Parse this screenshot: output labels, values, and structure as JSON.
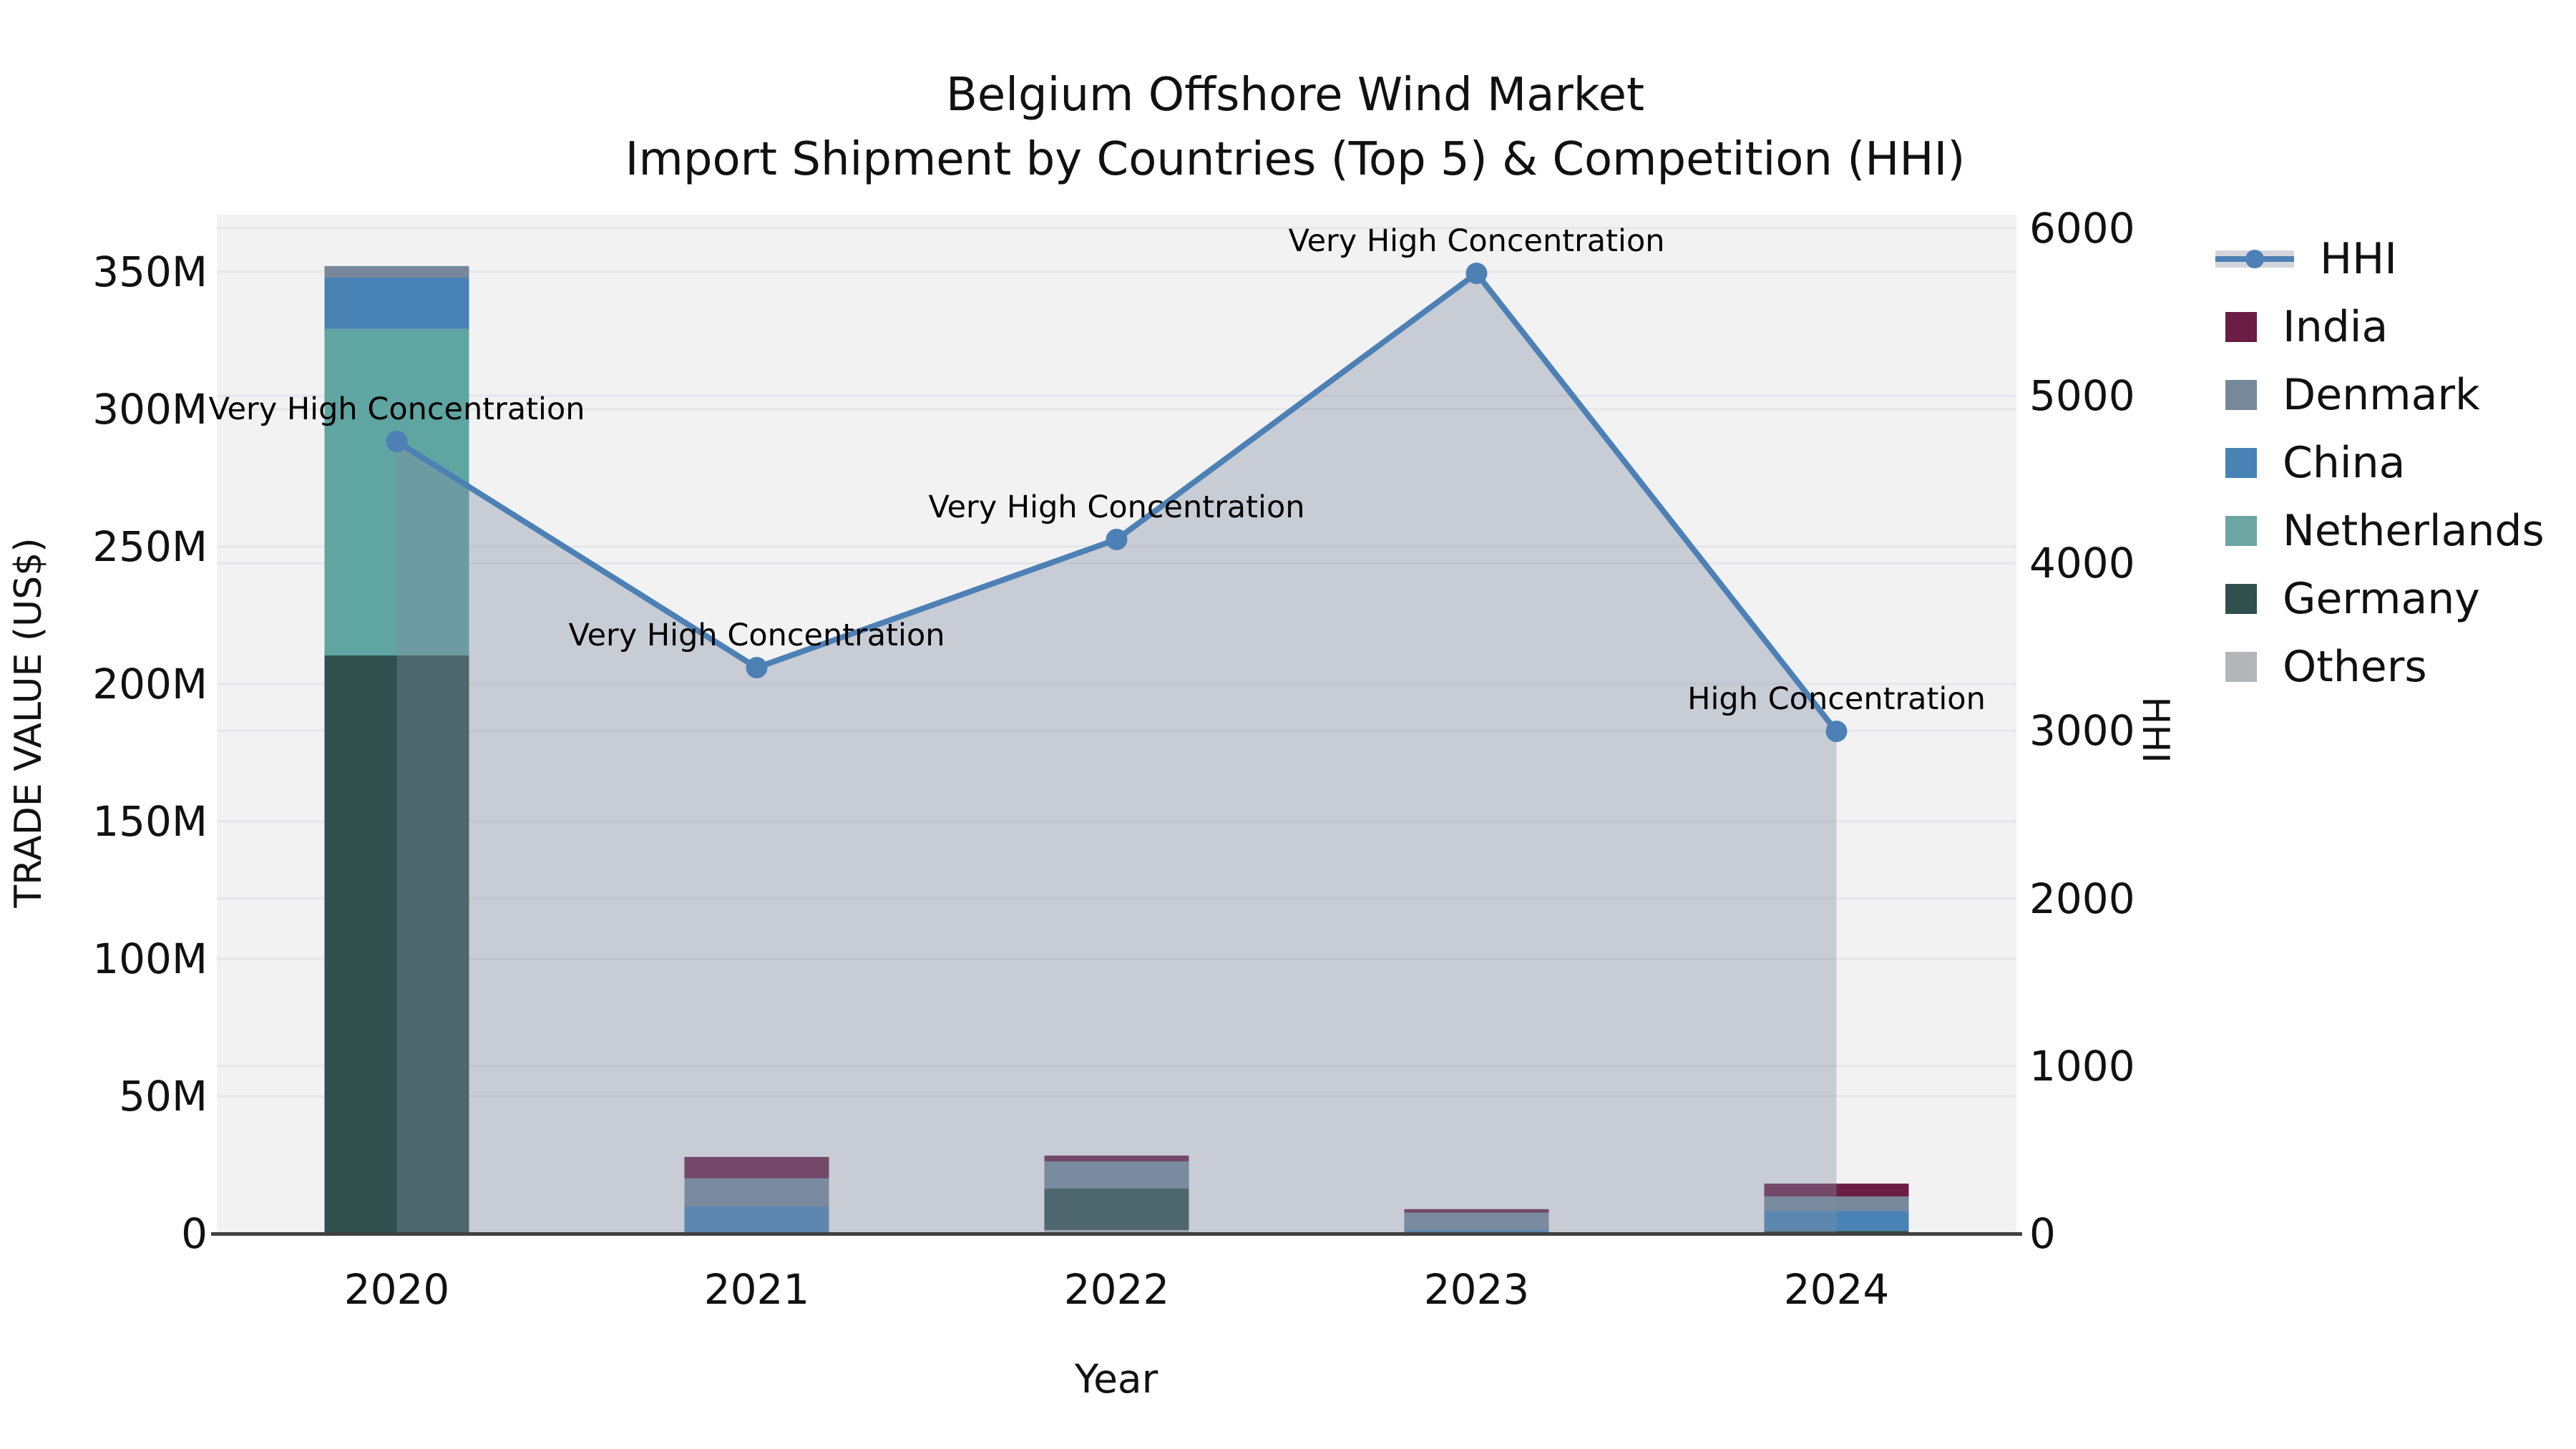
{
  "title": {
    "line1": "Belgium Offshore Wind Market",
    "line2": "Import Shipment by Countries (Top 5) & Competition (HHI)"
  },
  "axes": {
    "x_label": "Year",
    "y_left_label": "TRADE VALUE (US$)",
    "y_right_label": "HHI",
    "y_left_tick_labels": [
      "0",
      "50M",
      "100M",
      "150M",
      "200M",
      "250M",
      "300M",
      "350M"
    ],
    "y_right_tick_labels": [
      "0",
      "1000",
      "2000",
      "3000",
      "4000",
      "5000",
      "6000"
    ]
  },
  "legend": {
    "items": [
      {
        "label": "HHI",
        "type": "line",
        "color": "#4d80b4"
      },
      {
        "label": "India",
        "type": "swatch",
        "color": "#6b1d44"
      },
      {
        "label": "Denmark",
        "type": "swatch",
        "color": "#77889b"
      },
      {
        "label": "China",
        "type": "swatch",
        "color": "#4983b6"
      },
      {
        "label": "Netherlands",
        "type": "swatch",
        "color": "#6ba6a3"
      },
      {
        "label": "Germany",
        "type": "swatch",
        "color": "#2f504d"
      },
      {
        "label": "Others",
        "type": "swatch",
        "color": "#b3b6b9"
      }
    ]
  },
  "chart_data": {
    "type": "combo-stacked-bar-and-line-area",
    "categories": [
      "2020",
      "2021",
      "2022",
      "2023",
      "2024"
    ],
    "bar_axis": {
      "label": "TRADE VALUE (US$)",
      "unit": "M US$",
      "min": 0,
      "max": 370.8,
      "ticks": [
        0,
        50,
        100,
        150,
        200,
        250,
        300,
        350
      ],
      "tick_labels": [
        "0",
        "50M",
        "100M",
        "150M",
        "200M",
        "250M",
        "300M",
        "350M"
      ]
    },
    "line_axis": {
      "label": "HHI",
      "min": 0,
      "max": 6080,
      "ticks": [
        0,
        1000,
        2000,
        3000,
        4000,
        5000,
        6000
      ]
    },
    "grid": true,
    "legend_position": "outside-right",
    "bars_stacked_bottom_to_top": [
      {
        "year": "2020",
        "total": 352.1,
        "segments": [
          {
            "country": "Germany",
            "value": 210.4
          },
          {
            "country": "Netherlands",
            "value": 118.8
          },
          {
            "country": "China",
            "value": 18.7
          },
          {
            "country": "Denmark",
            "value": 4.2
          }
        ]
      },
      {
        "year": "2021",
        "total": 27.9,
        "segments": [
          {
            "country": "China",
            "value": 9.9
          },
          {
            "country": "Denmark",
            "value": 10.2
          },
          {
            "country": "India",
            "value": 7.8
          }
        ]
      },
      {
        "year": "2022",
        "total": 28.4,
        "segments": [
          {
            "country": "Others",
            "value": 1.3
          },
          {
            "country": "Germany",
            "value": 15.1
          },
          {
            "country": "Denmark",
            "value": 9.9
          },
          {
            "country": "India",
            "value": 2.1
          }
        ]
      },
      {
        "year": "2023",
        "total": 8.9,
        "segments": [
          {
            "country": "China",
            "value": 1.3
          },
          {
            "country": "Denmark",
            "value": 6.3
          },
          {
            "country": "India",
            "value": 1.3
          }
        ]
      },
      {
        "year": "2024",
        "total": 18.2,
        "segments": [
          {
            "country": "Germany",
            "value": 1.0
          },
          {
            "country": "China",
            "value": 7.3
          },
          {
            "country": "Denmark",
            "value": 5.2
          },
          {
            "country": "India",
            "value": 4.7
          }
        ]
      }
    ],
    "hhi_series": {
      "name": "HHI",
      "values": [
        4727,
        3377,
        4142,
        5730,
        2997
      ],
      "annotations": [
        "Very High Concentration",
        "Very High Concentration",
        "Very High Concentration",
        "Very High Concentration",
        "High Concentration"
      ]
    },
    "colors": {
      "India": "#6b1d44",
      "Denmark": "#77889b",
      "China": "#4983b6",
      "Netherlands": "#5fa5a1",
      "Germany": "#2f504d",
      "Others": "#b3b6b9",
      "hhi_line": "#4d80b4",
      "hhi_area": "rgba(130,141,166,0.38)",
      "plot_background": "#f2f2f3",
      "gridline": "#e6e6e8",
      "axis_line": "#404040"
    }
  }
}
